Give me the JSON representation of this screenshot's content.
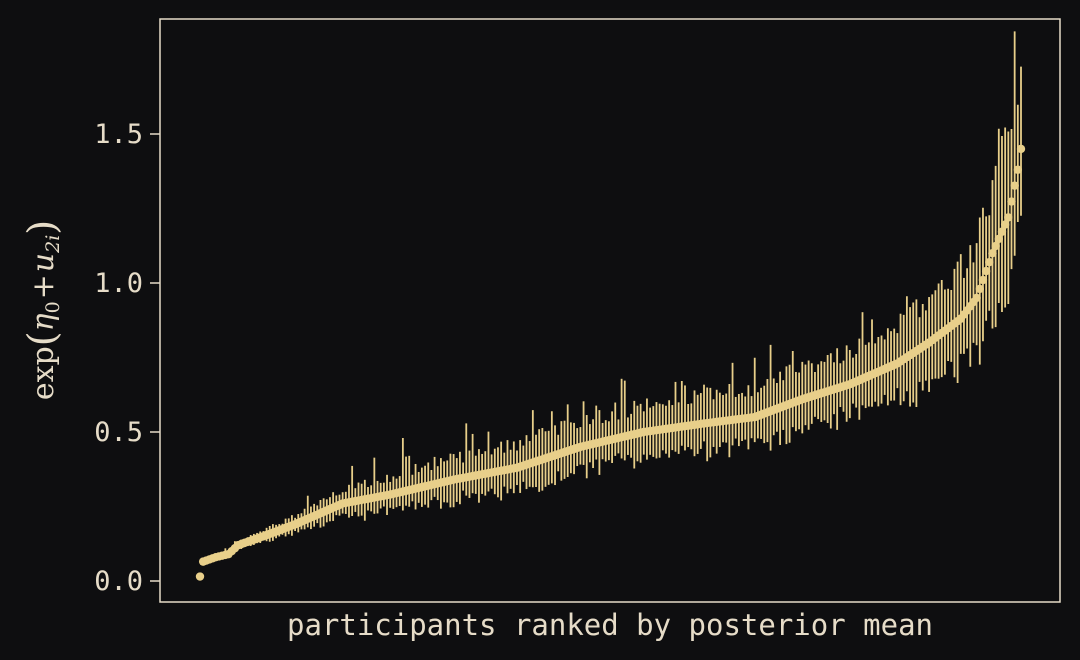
{
  "colors": {
    "background": "#0e0e10",
    "frame": "#e6dcc8",
    "text": "#e6dcc8",
    "points": "#e8cf8a"
  },
  "chart_data": {
    "type": "scatter",
    "subtype": "caterpillar plot (point estimates with interval bars)",
    "xlabel": "participants ranked by posterior mean",
    "ylabel": "exp(η0 + u2i)",
    "ylabel_parts": {
      "func": "exp",
      "open": "(",
      "eta": "η",
      "eta_sub": "0",
      "plus": "+",
      "u": "u",
      "u_sub": "2i",
      "close": ")"
    },
    "ylim": [
      -0.07,
      1.9
    ],
    "y_ticks": [
      0.0,
      0.5,
      1.0,
      1.5
    ],
    "y_tick_labels": [
      "0.0",
      "0.5",
      "1.0",
      "1.5"
    ],
    "x_ticks": [],
    "grid": false,
    "legend": "none",
    "n_participants": 260,
    "mean_anchors": [
      [
        0,
        0.015
      ],
      [
        1,
        0.065
      ],
      [
        5,
        0.08
      ],
      [
        9,
        0.09
      ],
      [
        12,
        0.12
      ],
      [
        20,
        0.15
      ],
      [
        30,
        0.19
      ],
      [
        45,
        0.26
      ],
      [
        60,
        0.29
      ],
      [
        80,
        0.34
      ],
      [
        100,
        0.38
      ],
      [
        120,
        0.45
      ],
      [
        140,
        0.5
      ],
      [
        160,
        0.53
      ],
      [
        175,
        0.55
      ],
      [
        190,
        0.61
      ],
      [
        205,
        0.66
      ],
      [
        220,
        0.73
      ],
      [
        230,
        0.8
      ],
      [
        240,
        0.88
      ],
      [
        245,
        0.95
      ],
      [
        250,
        1.1
      ],
      [
        255,
        1.22
      ],
      [
        258,
        1.38
      ],
      [
        259,
        1.45
      ]
    ],
    "halfwidth_anchors": [
      [
        0,
        0.0
      ],
      [
        10,
        0.01
      ],
      [
        30,
        0.03
      ],
      [
        60,
        0.06
      ],
      [
        100,
        0.08
      ],
      [
        150,
        0.09
      ],
      [
        200,
        0.11
      ],
      [
        230,
        0.14
      ],
      [
        245,
        0.18
      ],
      [
        252,
        0.25
      ],
      [
        259,
        0.3
      ]
    ]
  }
}
